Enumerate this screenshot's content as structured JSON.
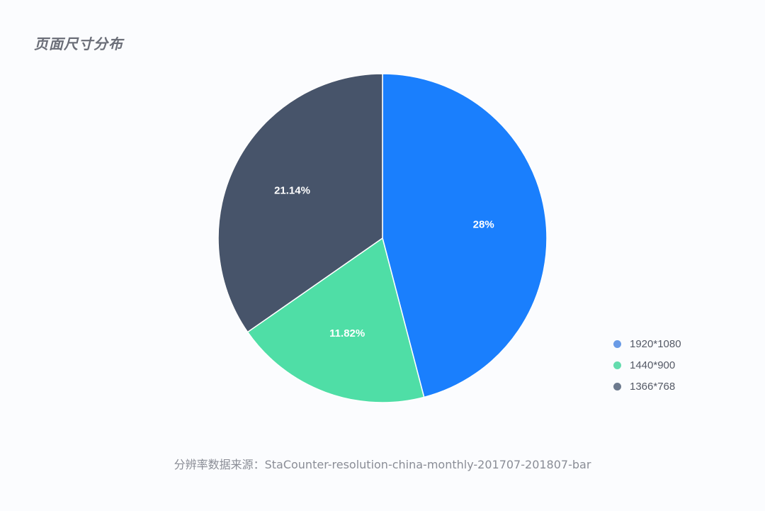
{
  "header": {
    "title": "页面尺寸分布"
  },
  "chart_data": {
    "type": "pie",
    "title": "页面尺寸分布",
    "slices": [
      {
        "name": "1920*1080",
        "value": 28,
        "label": "28%",
        "color": "#1a7ffd"
      },
      {
        "name": "1440*900",
        "value": 11.82,
        "label": "11.82%",
        "color": "#4fdea6"
      },
      {
        "name": "1366*768",
        "value": 21.14,
        "label": "21.14%",
        "color": "#47546a"
      }
    ],
    "start_angle": "12 o'clock",
    "direction": "clockwise",
    "legend": {
      "placement": "bottom-right",
      "entries": [
        {
          "label": "1920*1080",
          "color": "#6a9be6"
        },
        {
          "label": "1440*900",
          "color": "#64dcae"
        },
        {
          "label": "1366*768",
          "color": "#6d7a8e"
        }
      ]
    }
  },
  "footer": {
    "source": "分辨率数据来源：StaCounter-resolution-china-monthly-201707-201807-bar"
  }
}
